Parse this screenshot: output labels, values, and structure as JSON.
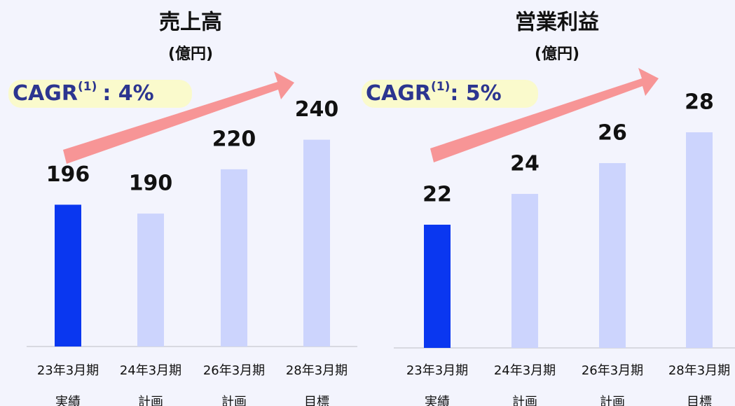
{
  "chart_data": [
    {
      "type": "bar",
      "title": "売上高",
      "subtitle": "(億円)",
      "annotation": {
        "label": "CAGR",
        "note": "(1)",
        "value": ": 4%"
      },
      "categories": [
        "23年3月期",
        "24年3月期",
        "26年3月期",
        "28年3月期"
      ],
      "category_notes": [
        "実績",
        "計画",
        "計画",
        "目標"
      ],
      "values": [
        196,
        190,
        220,
        240
      ],
      "colors": [
        "#0a37f0",
        "#ccd4fd",
        "#ccd4fd",
        "#ccd4fd"
      ],
      "ylim": [
        100,
        280
      ]
    },
    {
      "type": "bar",
      "title": "営業利益",
      "subtitle": "(億円)",
      "annotation": {
        "label": "CAGR",
        "note": "(1)",
        "value": ": 5%"
      },
      "categories": [
        "23年3月期",
        "24年3月期",
        "26年3月期",
        "28年3月期"
      ],
      "category_notes": [
        "実績",
        "計画",
        "計画",
        "目標"
      ],
      "values": [
        22,
        24,
        26,
        28
      ],
      "colors": [
        "#0a37f0",
        "#ccd4fd",
        "#ccd4fd",
        "#ccd4fd"
      ],
      "ylim": [
        14,
        31
      ]
    }
  ]
}
